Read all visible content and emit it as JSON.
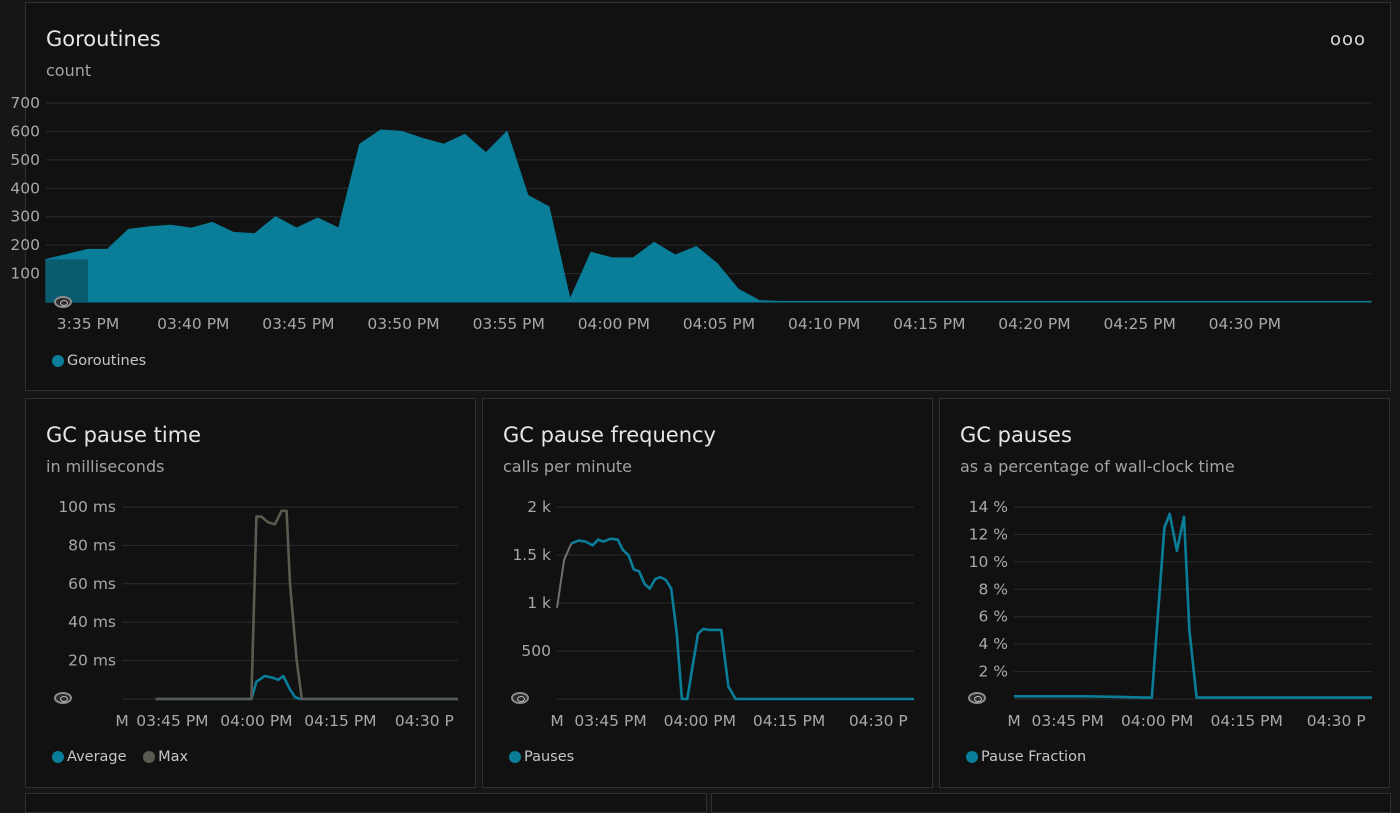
{
  "panels": {
    "goroutines": {
      "title": "Goroutines",
      "subtitle": "count",
      "menu_label": "ooo"
    },
    "gc_time": {
      "title": "GC pause time",
      "subtitle": "in milliseconds"
    },
    "gc_freq": {
      "title": "GC pause frequency",
      "subtitle": "calls per minute"
    },
    "gc_pauses": {
      "title": "GC pauses",
      "subtitle": "as a percentage of wall-clock time"
    }
  },
  "colors": {
    "teal": "#0a7d98",
    "max": "#5a5a50",
    "grid": "#2c2c2c"
  },
  "chart_data": [
    {
      "type": "area",
      "id": "goroutines",
      "title": "Goroutines",
      "subtitle": "count",
      "yticks": [
        {
          "v": 0,
          "label": ""
        },
        {
          "v": 100,
          "label": "100"
        },
        {
          "v": 200,
          "label": "200"
        },
        {
          "v": 300,
          "label": "300"
        },
        {
          "v": 400,
          "label": "400"
        },
        {
          "v": 500,
          "label": "500"
        },
        {
          "v": 600,
          "label": "600"
        },
        {
          "v": 700,
          "label": "700"
        }
      ],
      "ylim": [
        0,
        700
      ],
      "xlim": [
        15.55,
        16.6
      ],
      "xticks": [
        {
          "v": 15.5833,
          "label": "3:35 PM"
        },
        {
          "v": 15.6667,
          "label": "03:40 PM"
        },
        {
          "v": 15.75,
          "label": "03:45 PM"
        },
        {
          "v": 15.8333,
          "label": "03:50 PM"
        },
        {
          "v": 15.9167,
          "label": "03:55 PM"
        },
        {
          "v": 16.0,
          "label": "04:00 PM"
        },
        {
          "v": 16.0833,
          "label": "04:05 PM"
        },
        {
          "v": 16.1667,
          "label": "04:10 PM"
        },
        {
          "v": 16.25,
          "label": "04:15 PM"
        },
        {
          "v": 16.3333,
          "label": "04:20 PM"
        },
        {
          "v": 16.4167,
          "label": "04:25 PM"
        },
        {
          "v": 16.5,
          "label": "04:30 PM"
        }
      ],
      "series": [
        {
          "name": "Goroutines",
          "color": "#0a7d98",
          "x": [
            15.55,
            15.5833,
            15.5986,
            15.6153,
            15.6319,
            15.6486,
            15.6653,
            15.6819,
            15.6986,
            15.7153,
            15.7319,
            15.7486,
            15.7653,
            15.7819,
            15.7986,
            15.8153,
            15.8319,
            15.8486,
            15.8653,
            15.8819,
            15.8986,
            15.9153,
            15.9319,
            15.9486,
            15.9653,
            15.9819,
            15.9986,
            16.0153,
            16.0319,
            16.0486,
            16.0653,
            16.0819,
            16.0986,
            16.1153,
            16.1319,
            16.15,
            16.6
          ],
          "y": [
            150,
            185,
            185,
            255,
            265,
            270,
            260,
            280,
            245,
            240,
            300,
            260,
            295,
            260,
            555,
            605,
            600,
            575,
            555,
            590,
            525,
            600,
            375,
            335,
            10,
            175,
            155,
            155,
            210,
            165,
            195,
            135,
            45,
            5,
            2,
            2,
            2
          ]
        }
      ],
      "legend": [
        "Goroutines"
      ]
    },
    {
      "type": "line",
      "id": "gc_time",
      "title": "GC pause time",
      "subtitle": "in milliseconds",
      "yticks": [
        {
          "v": 0,
          "label": ""
        },
        {
          "v": 20,
          "label": "20 ms"
        },
        {
          "v": 40,
          "label": "40 ms"
        },
        {
          "v": 60,
          "label": "60 ms"
        },
        {
          "v": 80,
          "label": "80 ms"
        },
        {
          "v": 100,
          "label": "100 ms"
        }
      ],
      "ylim": [
        0,
        100
      ],
      "xlim": [
        15.6,
        16.6
      ],
      "xticks": [
        {
          "v": 15.6,
          "label": "M"
        },
        {
          "v": 15.75,
          "label": "03:45 PM"
        },
        {
          "v": 16.0,
          "label": "04:00 PM"
        },
        {
          "v": 16.25,
          "label": "04:15 PM"
        },
        {
          "v": 16.5,
          "label": "04:30 P"
        }
      ],
      "series": [
        {
          "name": "Average",
          "color": "#0a7d98",
          "x": [
            15.7,
            15.985,
            16.0,
            16.025,
            16.05,
            16.065,
            16.08,
            16.1,
            16.115,
            16.13,
            16.6
          ],
          "y": [
            0,
            0,
            9,
            12,
            11,
            10,
            12,
            5,
            1,
            0,
            0
          ]
        },
        {
          "name": "Max",
          "color": "#5a5a50",
          "x": [
            15.7,
            15.985,
            16.0,
            16.015,
            16.035,
            16.055,
            16.075,
            16.09,
            16.1,
            16.12,
            16.135,
            16.6
          ],
          "y": [
            0,
            0,
            95,
            95,
            92,
            91,
            98,
            98,
            60,
            20,
            0,
            0
          ]
        }
      ],
      "legend": [
        "Average",
        "Max"
      ]
    },
    {
      "type": "line",
      "id": "gc_freq",
      "title": "GC pause frequency",
      "subtitle": "calls per minute",
      "yticks": [
        {
          "v": 0,
          "label": ""
        },
        {
          "v": 500,
          "label": "500"
        },
        {
          "v": 1000,
          "label": "1 k"
        },
        {
          "v": 1500,
          "label": "1.5 k"
        },
        {
          "v": 2000,
          "label": "2 k"
        }
      ],
      "ylim": [
        0,
        2000
      ],
      "xlim": [
        15.6,
        16.6
      ],
      "xticks": [
        {
          "v": 15.6,
          "label": "M"
        },
        {
          "v": 15.75,
          "label": "03:45 PM"
        },
        {
          "v": 16.0,
          "label": "04:00 PM"
        },
        {
          "v": 16.25,
          "label": "04:15 PM"
        },
        {
          "v": 16.5,
          "label": "04:30 P"
        }
      ],
      "series": [
        {
          "name": "Pauses",
          "color": "#0a7d98",
          "x": [
            15.6,
            15.62,
            15.64,
            15.66,
            15.68,
            15.7,
            15.715,
            15.73,
            15.75,
            15.77,
            15.785,
            15.8,
            15.815,
            15.83,
            15.845,
            15.86,
            15.875,
            15.89,
            15.905,
            15.92,
            15.935,
            15.95,
            15.965,
            15.98,
            15.995,
            16.01,
            16.025,
            16.04,
            16.06,
            16.08,
            16.1,
            16.12,
            16.135,
            16.15,
            16.6
          ],
          "y": [
            950,
            1450,
            1620,
            1650,
            1640,
            1600,
            1660,
            1640,
            1670,
            1660,
            1550,
            1500,
            1350,
            1330,
            1200,
            1150,
            1250,
            1270,
            1240,
            1150,
            700,
            0,
            0,
            350,
            680,
            730,
            720,
            720,
            720,
            130,
            0,
            0,
            0,
            0,
            0
          ],
          "first_point_gray": 2
        }
      ],
      "legend": [
        "Pauses"
      ]
    },
    {
      "type": "line",
      "id": "gc_pauses",
      "title": "GC pauses",
      "subtitle": "as a percentage of wall-clock time",
      "yticks": [
        {
          "v": 0,
          "label": ""
        },
        {
          "v": 2,
          "label": "2 %"
        },
        {
          "v": 4,
          "label": "4 %"
        },
        {
          "v": 6,
          "label": "6 %"
        },
        {
          "v": 8,
          "label": "8 %"
        },
        {
          "v": 10,
          "label": "10 %"
        },
        {
          "v": 12,
          "label": "12 %"
        },
        {
          "v": 14,
          "label": "14 %"
        }
      ],
      "ylim": [
        0,
        14
      ],
      "xlim": [
        15.6,
        16.6
      ],
      "xticks": [
        {
          "v": 15.6,
          "label": "M"
        },
        {
          "v": 15.75,
          "label": "03:45 PM"
        },
        {
          "v": 16.0,
          "label": "04:00 PM"
        },
        {
          "v": 16.25,
          "label": "04:15 PM"
        },
        {
          "v": 16.5,
          "label": "04:30 P"
        }
      ],
      "series": [
        {
          "name": "Pause Fraction",
          "color": "#0a7d98",
          "x": [
            15.6,
            15.7,
            15.8,
            15.9,
            15.96,
            15.985,
            16.02,
            16.035,
            16.055,
            16.075,
            16.09,
            16.11,
            16.13,
            16.6
          ],
          "y": [
            0.2,
            0.2,
            0.2,
            0.15,
            0.1,
            0.1,
            12.5,
            13.5,
            10.8,
            13.3,
            5,
            0.1,
            0.1,
            0.1
          ]
        }
      ],
      "legend": [
        "Pause Fraction"
      ]
    }
  ]
}
